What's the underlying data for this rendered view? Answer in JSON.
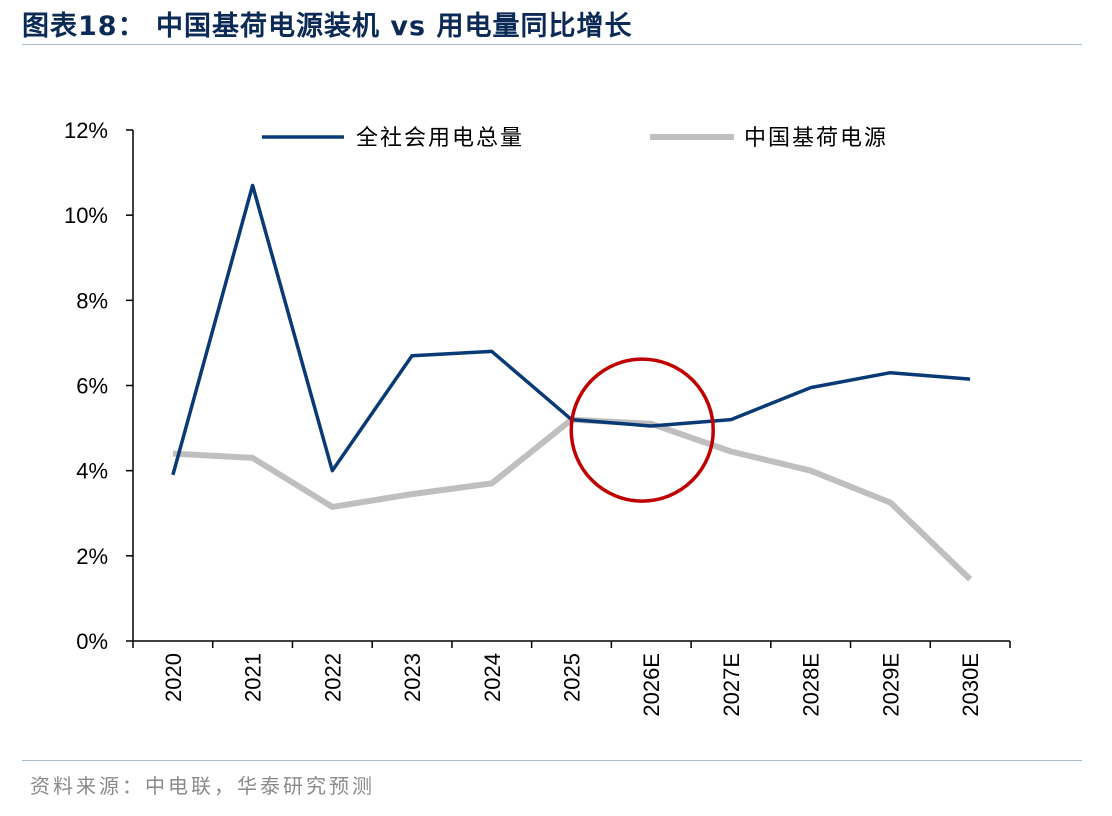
{
  "header": {
    "title": "图表18：  中国基荷电源装机 vs 用电量同比增长"
  },
  "footer": {
    "source": "资料来源：中电联，华泰研究预测"
  },
  "chart_data": {
    "type": "line",
    "title": "",
    "xlabel": "",
    "ylabel": "",
    "x": [
      "2020",
      "2021",
      "2022",
      "2023",
      "2024",
      "2025",
      "2026E",
      "2027E",
      "2028E",
      "2029E",
      "2030E"
    ],
    "ylim": [
      0,
      12
    ],
    "yticks": [
      0,
      2,
      4,
      6,
      8,
      10,
      12
    ],
    "ytick_labels": [
      "0%",
      "2%",
      "4%",
      "6%",
      "8%",
      "10%",
      "12%"
    ],
    "grid": false,
    "legend_position": "top",
    "series": [
      {
        "name": "全社会用电总量",
        "color": "#0a3a75",
        "values": [
          3.9,
          10.7,
          4.0,
          6.7,
          6.8,
          5.2,
          5.05,
          5.2,
          5.95,
          6.3,
          6.15
        ]
      },
      {
        "name": "中国基荷电源",
        "color": "#bfbfbf",
        "values": [
          4.4,
          4.3,
          3.15,
          3.45,
          3.7,
          5.2,
          5.1,
          4.45,
          4.0,
          3.25,
          1.45
        ]
      }
    ],
    "annotations": [
      {
        "type": "circle",
        "color": "#c00000",
        "at_x": "2026E",
        "at_y": 5.0
      }
    ]
  }
}
